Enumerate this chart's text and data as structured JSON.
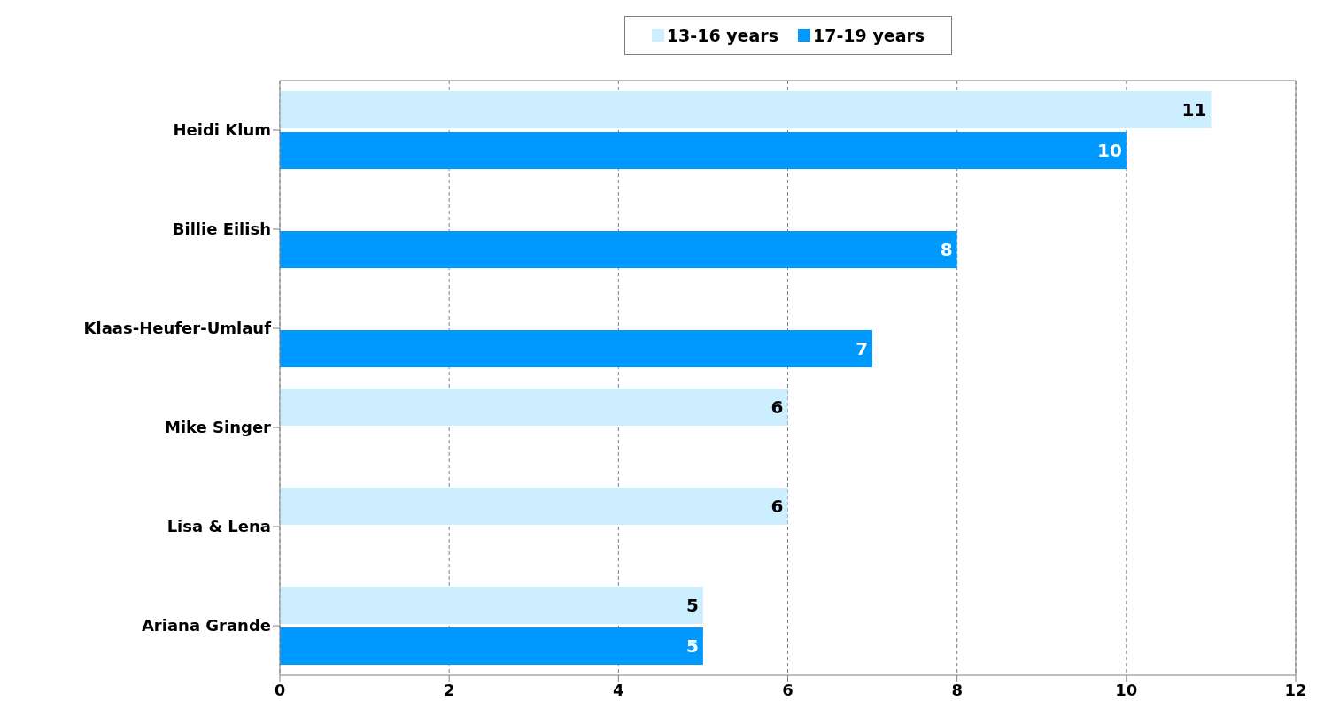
{
  "chart_data": {
    "type": "bar",
    "orientation": "horizontal",
    "categories": [
      "Heidi Klum",
      "Billie Eilish",
      "Klaas-Heufer-Umlauf",
      "Mike Singer",
      "Lisa & Lena",
      "Ariana Grande"
    ],
    "series": [
      {
        "name": "13-16 years",
        "color": "#cceeff",
        "values": [
          11,
          null,
          null,
          6,
          6,
          5
        ]
      },
      {
        "name": "17-19 years",
        "color": "#0099ff",
        "values": [
          10,
          8,
          7,
          null,
          null,
          5
        ]
      }
    ],
    "xlim": [
      0,
      12
    ],
    "xticks": [
      0,
      2,
      4,
      6,
      8,
      10,
      12
    ],
    "grid": "x",
    "legend": "top",
    "data_labels": true
  }
}
